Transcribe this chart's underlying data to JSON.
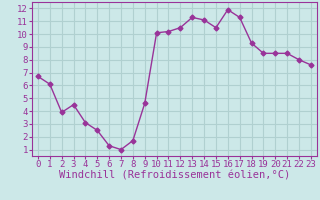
{
  "x": [
    0,
    1,
    2,
    3,
    4,
    5,
    6,
    7,
    8,
    9,
    10,
    11,
    12,
    13,
    14,
    15,
    16,
    17,
    18,
    19,
    20,
    21,
    22,
    23
  ],
  "y": [
    6.7,
    6.1,
    3.9,
    4.5,
    3.1,
    2.5,
    1.3,
    1.0,
    1.7,
    4.6,
    10.1,
    10.2,
    10.5,
    11.3,
    11.1,
    10.5,
    11.9,
    11.3,
    9.3,
    8.5,
    8.5,
    8.5,
    8.0,
    7.6
  ],
  "line_color": "#993399",
  "marker": "D",
  "marker_size": 2.5,
  "bg_color": "#cce8e8",
  "grid_color": "#b0d0d0",
  "xlabel": "Windchill (Refroidissement éolien,°C)",
  "xlim": [
    -0.5,
    23.5
  ],
  "ylim": [
    0.5,
    12.5
  ],
  "xticks": [
    0,
    1,
    2,
    3,
    4,
    5,
    6,
    7,
    8,
    9,
    10,
    11,
    12,
    13,
    14,
    15,
    16,
    17,
    18,
    19,
    20,
    21,
    22,
    23
  ],
  "yticks": [
    1,
    2,
    3,
    4,
    5,
    6,
    7,
    8,
    9,
    10,
    11,
    12
  ],
  "tick_fontsize": 6.5,
  "label_fontsize": 7.5
}
